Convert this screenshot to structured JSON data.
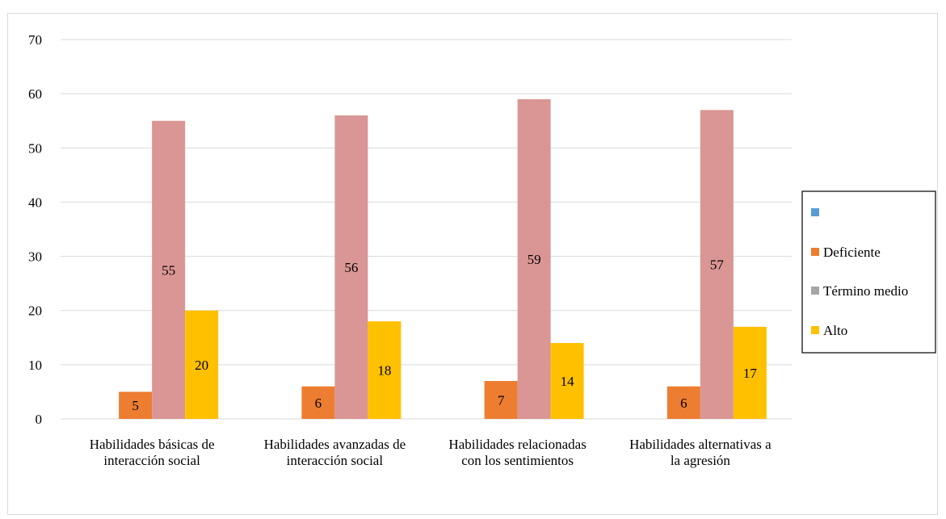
{
  "chart_data": {
    "type": "bar",
    "categories": [
      [
        "Habilidades básicas de",
        "interacción social"
      ],
      [
        "Habilidades avanzadas de",
        "interacción social"
      ],
      [
        "Habilidades relacionadas",
        "con los sentimientos"
      ],
      [
        "Habilidades alternativas a",
        "la agresión"
      ]
    ],
    "series": [
      {
        "name": "",
        "color": "#5b9bd5",
        "values": [
          0,
          0,
          0,
          0
        ],
        "show_labels": false
      },
      {
        "name": "Deficiente",
        "color": "#ed7d31",
        "values": [
          5,
          6,
          7,
          6
        ],
        "show_labels": true
      },
      {
        "name": "Término medio",
        "color": "#da9694",
        "legend_color": "#a5a5a5",
        "values": [
          55,
          56,
          59,
          57
        ],
        "show_labels": true
      },
      {
        "name": "Alto",
        "color": "#ffc000",
        "values": [
          20,
          18,
          14,
          17
        ],
        "show_labels": true
      }
    ],
    "ylim": [
      0,
      70
    ],
    "yticks": [
      0,
      10,
      20,
      30,
      40,
      50,
      60,
      70
    ],
    "grid": true,
    "legend_position": "right"
  }
}
